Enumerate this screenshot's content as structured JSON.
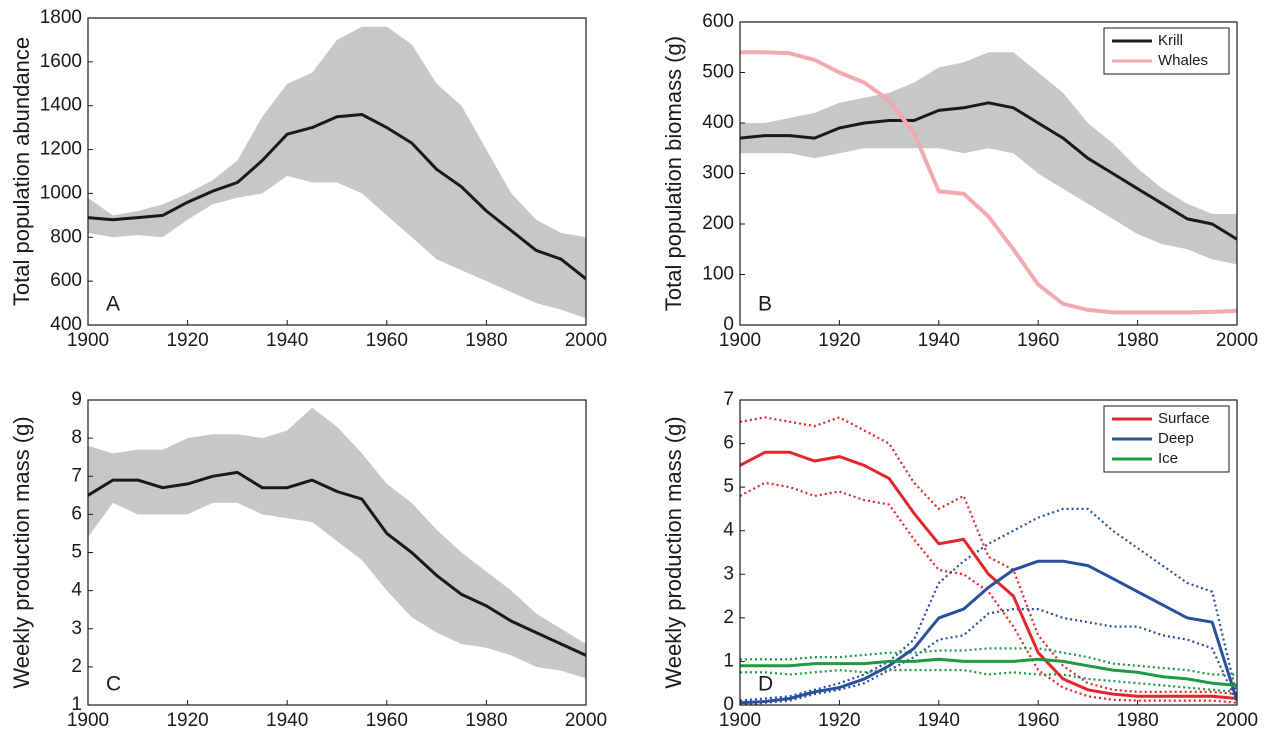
{
  "chart_data": [
    {
      "type": "line",
      "bounds": "band",
      "band_color": "#c5c7c9",
      "annotation": "A",
      "y_label": "Total population abundance",
      "x": [
        1900,
        1905,
        1910,
        1915,
        1920,
        1925,
        1930,
        1935,
        1940,
        1945,
        1950,
        1955,
        1960,
        1965,
        1970,
        1975,
        1980,
        1985,
        1990,
        1995,
        2000
      ],
      "xlim": [
        1900,
        2000
      ],
      "xticks": [
        1900,
        1920,
        1940,
        1960,
        1980,
        2000
      ],
      "ylim": [
        400,
        1800
      ],
      "yticks": [
        400,
        600,
        800,
        1000,
        1200,
        1400,
        1600,
        1800
      ],
      "series": [
        {
          "color": "#1a1a1a",
          "values": [
            890,
            880,
            890,
            900,
            960,
            1010,
            1050,
            1150,
            1270,
            1300,
            1350,
            1360,
            1300,
            1230,
            1110,
            1030,
            920,
            830,
            740,
            700,
            610
          ],
          "upper": [
            980,
            900,
            920,
            950,
            1000,
            1060,
            1150,
            1350,
            1500,
            1550,
            1700,
            1760,
            1760,
            1680,
            1500,
            1400,
            1200,
            1000,
            880,
            820,
            800
          ],
          "lower": [
            820,
            800,
            810,
            800,
            880,
            950,
            980,
            1000,
            1080,
            1050,
            1050,
            1000,
            900,
            800,
            700,
            650,
            600,
            550,
            500,
            470,
            430
          ]
        }
      ]
    },
    {
      "type": "line",
      "bounds": "band",
      "band_color": "#c5c7c9",
      "annotation": "B",
      "y_label": "Total population biomass (g)",
      "legend": "upper right",
      "x": [
        1900,
        1905,
        1910,
        1915,
        1920,
        1925,
        1930,
        1935,
        1940,
        1945,
        1950,
        1955,
        1960,
        1965,
        1970,
        1975,
        1980,
        1985,
        1990,
        1995,
        2000
      ],
      "xlim": [
        1900,
        2000
      ],
      "xticks": [
        1900,
        1920,
        1940,
        1960,
        1980,
        2000
      ],
      "ylim": [
        0,
        600
      ],
      "yticks": [
        0,
        100,
        200,
        300,
        400,
        500,
        600
      ],
      "series": [
        {
          "name": "Krill",
          "color": "#1a1a1a",
          "values": [
            370,
            375,
            375,
            370,
            390,
            400,
            405,
            405,
            425,
            430,
            440,
            430,
            400,
            370,
            330,
            300,
            270,
            240,
            210,
            200,
            170
          ],
          "upper": [
            400,
            400,
            410,
            420,
            440,
            450,
            460,
            480,
            510,
            520,
            540,
            540,
            500,
            460,
            400,
            360,
            310,
            270,
            240,
            220,
            220
          ],
          "lower": [
            340,
            340,
            340,
            330,
            340,
            350,
            350,
            350,
            350,
            340,
            350,
            340,
            300,
            270,
            240,
            210,
            180,
            160,
            150,
            130,
            120
          ]
        },
        {
          "name": "Whales",
          "color": "#f3a9b0",
          "values": [
            540,
            540,
            538,
            525,
            500,
            480,
            445,
            380,
            265,
            260,
            215,
            150,
            80,
            42,
            30,
            25,
            25,
            25,
            25,
            26,
            28
          ]
        }
      ]
    },
    {
      "type": "line",
      "bounds": "band",
      "band_color": "#c5c7c9",
      "annotation": "C",
      "y_label": "Weekly production mass (g)",
      "x": [
        1900,
        1905,
        1910,
        1915,
        1920,
        1925,
        1930,
        1935,
        1940,
        1945,
        1950,
        1955,
        1960,
        1965,
        1970,
        1975,
        1980,
        1985,
        1990,
        1995,
        2000
      ],
      "xlim": [
        1900,
        2000
      ],
      "xticks": [
        1900,
        1920,
        1940,
        1960,
        1980,
        2000
      ],
      "ylim": [
        1,
        9
      ],
      "yticks": [
        1,
        2,
        3,
        4,
        5,
        6,
        7,
        8,
        9
      ],
      "series": [
        {
          "color": "#1a1a1a",
          "values": [
            6.5,
            6.9,
            6.9,
            6.7,
            6.8,
            7.0,
            7.1,
            6.7,
            6.7,
            6.9,
            6.6,
            6.4,
            5.5,
            5.0,
            4.4,
            3.9,
            3.6,
            3.2,
            2.9,
            2.6,
            2.3
          ],
          "upper": [
            7.8,
            7.6,
            7.7,
            7.7,
            8.0,
            8.1,
            8.1,
            8.0,
            8.2,
            8.8,
            8.3,
            7.6,
            6.8,
            6.3,
            5.6,
            5.0,
            4.5,
            4.0,
            3.4,
            3.0,
            2.6
          ],
          "lower": [
            5.4,
            6.3,
            6.0,
            6.0,
            6.0,
            6.3,
            6.3,
            6.0,
            5.9,
            5.8,
            5.3,
            4.8,
            4.0,
            3.3,
            2.9,
            2.6,
            2.5,
            2.3,
            2.0,
            1.9,
            1.7
          ]
        }
      ]
    },
    {
      "type": "line",
      "bounds": "dotted",
      "annotation": "D",
      "y_label": "Weekly production mass (g)",
      "legend": "upper right",
      "x": [
        1900,
        1905,
        1910,
        1915,
        1920,
        1925,
        1930,
        1935,
        1940,
        1945,
        1950,
        1955,
        1960,
        1965,
        1970,
        1975,
        1980,
        1985,
        1990,
        1995,
        2000
      ],
      "xlim": [
        1900,
        2000
      ],
      "xticks": [
        1900,
        1920,
        1940,
        1960,
        1980,
        2000
      ],
      "ylim": [
        0,
        7
      ],
      "yticks": [
        0,
        1,
        2,
        3,
        4,
        5,
        6,
        7
      ],
      "series": [
        {
          "name": "Surface",
          "color": "#e3262b",
          "values": [
            5.5,
            5.8,
            5.8,
            5.6,
            5.7,
            5.5,
            5.2,
            4.4,
            3.7,
            3.8,
            3.0,
            2.5,
            1.2,
            0.6,
            0.35,
            0.25,
            0.2,
            0.2,
            0.2,
            0.2,
            0.15
          ],
          "upper": [
            6.5,
            6.6,
            6.5,
            6.4,
            6.6,
            6.3,
            6.0,
            5.1,
            4.5,
            4.8,
            3.4,
            3.1,
            1.6,
            0.9,
            0.5,
            0.35,
            0.3,
            0.3,
            0.3,
            0.3,
            0.25
          ],
          "lower": [
            4.8,
            5.1,
            5.0,
            4.8,
            4.9,
            4.7,
            4.6,
            3.8,
            3.1,
            3.0,
            2.6,
            1.8,
            0.8,
            0.4,
            0.2,
            0.12,
            0.1,
            0.1,
            0.1,
            0.1,
            0.05
          ]
        },
        {
          "name": "Deep",
          "color": "#2a4f9c",
          "values": [
            0.05,
            0.08,
            0.15,
            0.3,
            0.4,
            0.6,
            0.9,
            1.3,
            2.0,
            2.2,
            2.7,
            3.1,
            3.3,
            3.3,
            3.2,
            2.9,
            2.6,
            2.3,
            2.0,
            1.9,
            0.1
          ],
          "upper": [
            0.1,
            0.15,
            0.2,
            0.35,
            0.5,
            0.7,
            1.0,
            1.5,
            2.8,
            3.3,
            3.7,
            4.0,
            4.3,
            4.5,
            4.5,
            4.0,
            3.6,
            3.2,
            2.8,
            2.6,
            0.2
          ],
          "lower": [
            0,
            0.05,
            0.1,
            0.25,
            0.35,
            0.5,
            0.8,
            1.1,
            1.5,
            1.6,
            2.1,
            2.2,
            2.2,
            2.0,
            1.9,
            1.8,
            1.8,
            1.6,
            1.5,
            1.3,
            0.05
          ]
        },
        {
          "name": "Ice",
          "color": "#1e9a40",
          "values": [
            0.9,
            0.9,
            0.9,
            0.95,
            0.95,
            0.95,
            1.0,
            1.0,
            1.05,
            1.0,
            1.0,
            1.0,
            1.05,
            1.0,
            0.9,
            0.8,
            0.75,
            0.65,
            0.6,
            0.5,
            0.45
          ],
          "upper": [
            1.05,
            1.05,
            1.05,
            1.1,
            1.1,
            1.15,
            1.2,
            1.2,
            1.25,
            1.25,
            1.3,
            1.3,
            1.3,
            1.2,
            1.1,
            0.95,
            0.9,
            0.85,
            0.8,
            0.7,
            0.7
          ],
          "lower": [
            0.75,
            0.75,
            0.7,
            0.75,
            0.8,
            0.75,
            0.8,
            0.8,
            0.8,
            0.8,
            0.7,
            0.75,
            0.7,
            0.7,
            0.6,
            0.55,
            0.5,
            0.45,
            0.4,
            0.35,
            0.3
          ]
        }
      ]
    }
  ]
}
